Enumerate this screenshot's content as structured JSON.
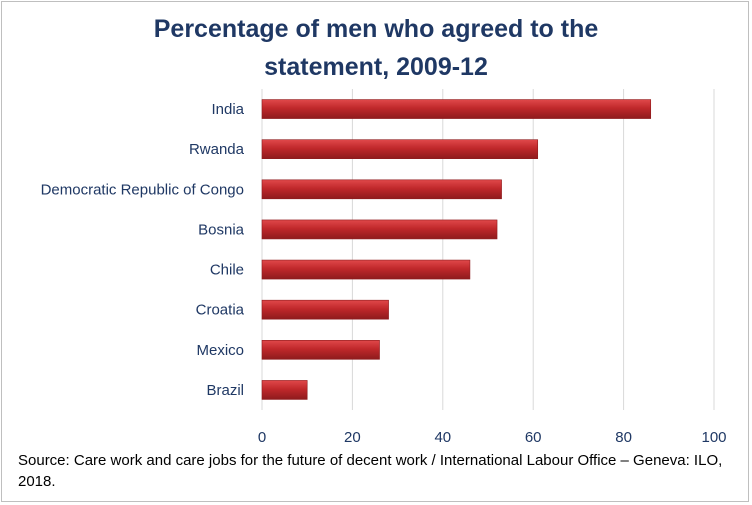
{
  "chart_data": {
    "type": "bar",
    "orientation": "horizontal",
    "title_lines": [
      "Percentage of men who agreed to the",
      "statement, 2009-12"
    ],
    "categories": [
      "India",
      "Rwanda",
      "Democratic Republic of Congo",
      "Bosnia",
      "Chile",
      "Croatia",
      "Mexico",
      "Brazil"
    ],
    "values": [
      86,
      61,
      53,
      52,
      46,
      28,
      26,
      10
    ],
    "xlim": [
      0,
      100
    ],
    "xticks": [
      0,
      20,
      40,
      60,
      80,
      100
    ],
    "xlabel": "",
    "ylabel": "",
    "grid": true,
    "legend": "none"
  },
  "colors": {
    "bar": "#c0282b",
    "bar_highlight": "#e0484a",
    "bar_shade": "#8e1b1d",
    "grid": "#d9d9d9",
    "text": "#1f3864"
  },
  "source": "Source: Care work and care jobs for the future of decent work / International Labour Office – Geneva: ILO, 2018."
}
